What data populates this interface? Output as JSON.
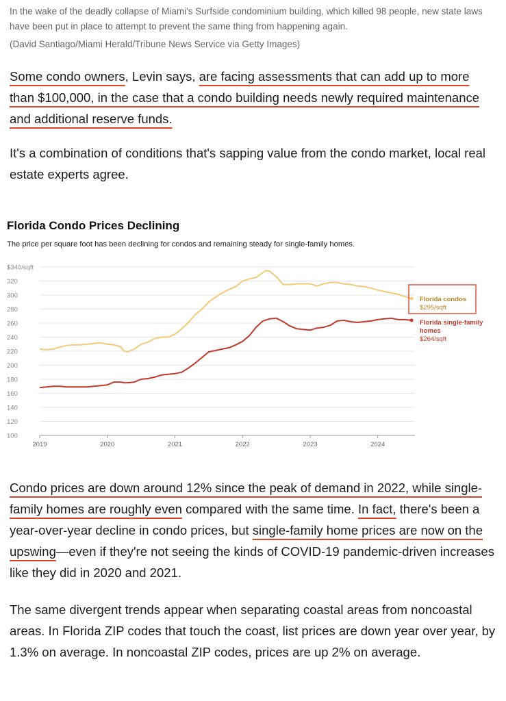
{
  "caption": {
    "text": "In the wake of the deadly collapse of Miami's Surfside condominium building, which killed 98 people, new state laws have been put in place to attempt to prevent the same thing from happening again.",
    "credit": "(David Santiago/Miami Herald/Tribune News Service via Getty Images)"
  },
  "para1": {
    "a": "Some condo owners",
    "b": ", Levin says, ",
    "c": "are facing assessments that can add up to more than $100,000, in the case that a condo building needs newly required maintenance and additional reserve funds."
  },
  "para2": "It's a combination of conditions that's sapping value from the condo market, local real estate experts agree.",
  "para3": {
    "a": "Condo prices are down around 12% since the peak of demand in 2022, while single-family homes are roughly even",
    "b": " compared with the same time. ",
    "c": "In fact,",
    "d": " there's been a year-over-year decline in condo prices, but ",
    "e": "single-family home prices are now on the upswing",
    "f": "—even if they're not seeing the kinds of COVID-19 pandemic-driven increases like they did in 2020 and 2021."
  },
  "para4": "The same divergent trends appear when separating coastal areas from noncoastal areas. In Florida ZIP codes that touch the coast, list prices are down year over year, by 1.3% on average. In noncoastal ZIP codes, prices are up 2% on average.",
  "colors": {
    "condo": "#f3c97a",
    "sfh": "#c0392b",
    "condo_label": "#b7862a",
    "highlight": "#e0452a"
  },
  "chart_data": {
    "type": "line",
    "title": "Florida Condo Prices Declining",
    "subtitle": "The price per square foot has been declining for condos and remaining steady for single-family homes.",
    "ylim": [
      100,
      340
    ],
    "yticks": [
      "$340/sqft",
      "320",
      "300",
      "280",
      "260",
      "240",
      "220",
      "200",
      "180",
      "160",
      "140",
      "120",
      "100"
    ],
    "xlim": [
      2019,
      2024.55
    ],
    "xticks": [
      "2019",
      "2020",
      "2021",
      "2022",
      "2023",
      "2024"
    ],
    "grid": true,
    "series": [
      {
        "name": "Florida condos",
        "end_label": "$295/sqft",
        "x": [
          2019.0,
          2019.1,
          2019.2,
          2019.3,
          2019.4,
          2019.5,
          2019.6,
          2019.7,
          2019.8,
          2019.9,
          2020.0,
          2020.1,
          2020.2,
          2020.25,
          2020.3,
          2020.4,
          2020.5,
          2020.6,
          2020.7,
          2020.8,
          2020.9,
          2021.0,
          2021.1,
          2021.2,
          2021.3,
          2021.4,
          2021.5,
          2021.6,
          2021.7,
          2021.8,
          2021.9,
          2022.0,
          2022.1,
          2022.2,
          2022.3,
          2022.35,
          2022.4,
          2022.5,
          2022.6,
          2022.7,
          2022.8,
          2022.9,
          2023.0,
          2023.1,
          2023.2,
          2023.3,
          2023.4,
          2023.5,
          2023.6,
          2023.7,
          2023.8,
          2023.9,
          2024.0,
          2024.1,
          2024.2,
          2024.3,
          2024.4,
          2024.5
        ],
        "values": [
          223,
          222,
          223,
          226,
          228,
          229,
          229,
          230,
          231,
          232,
          230,
          229,
          226,
          220,
          219,
          223,
          230,
          233,
          238,
          240,
          240,
          244,
          252,
          261,
          272,
          280,
          290,
          297,
          303,
          308,
          312,
          320,
          323,
          325,
          332,
          335,
          334,
          326,
          315,
          315,
          316,
          316,
          316,
          313,
          316,
          318,
          318,
          316,
          315,
          313,
          312,
          310,
          307,
          305,
          303,
          301,
          298,
          295
        ]
      },
      {
        "name": "Florida single-family homes",
        "end_label": "$264/sqft",
        "x": [
          2019.0,
          2019.1,
          2019.2,
          2019.3,
          2019.4,
          2019.5,
          2019.6,
          2019.7,
          2019.8,
          2019.9,
          2020.0,
          2020.1,
          2020.2,
          2020.25,
          2020.3,
          2020.4,
          2020.5,
          2020.6,
          2020.7,
          2020.8,
          2020.9,
          2021.0,
          2021.1,
          2021.2,
          2021.3,
          2021.4,
          2021.5,
          2021.6,
          2021.7,
          2021.8,
          2021.9,
          2022.0,
          2022.1,
          2022.2,
          2022.3,
          2022.4,
          2022.5,
          2022.6,
          2022.7,
          2022.8,
          2022.9,
          2023.0,
          2023.1,
          2023.2,
          2023.3,
          2023.4,
          2023.5,
          2023.6,
          2023.7,
          2023.8,
          2023.9,
          2024.0,
          2024.1,
          2024.2,
          2024.3,
          2024.4,
          2024.5
        ],
        "values": [
          168,
          169,
          170,
          170,
          169,
          169,
          169,
          169,
          170,
          171,
          172,
          176,
          176,
          175,
          175,
          176,
          180,
          181,
          183,
          186,
          187,
          188,
          190,
          196,
          203,
          211,
          219,
          221,
          223,
          225,
          229,
          234,
          242,
          254,
          263,
          266,
          267,
          262,
          256,
          252,
          251,
          250,
          253,
          254,
          257,
          263,
          264,
          262,
          261,
          262,
          263,
          265,
          266,
          267,
          265,
          265,
          264
        ]
      }
    ]
  }
}
